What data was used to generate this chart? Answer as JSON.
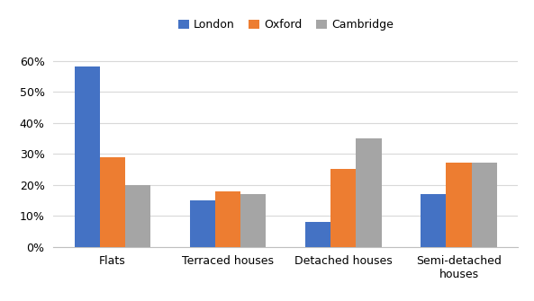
{
  "categories": [
    "Flats",
    "Terraced houses",
    "Detached houses",
    "Semi-detached\nhouses"
  ],
  "series": {
    "London": [
      0.58,
      0.15,
      0.08,
      0.17
    ],
    "Oxford": [
      0.29,
      0.18,
      0.25,
      0.27
    ],
    "Cambridge": [
      0.2,
      0.17,
      0.35,
      0.27
    ]
  },
  "colors": {
    "London": "#4472C4",
    "Oxford": "#ED7D31",
    "Cambridge": "#A5A5A5"
  },
  "ylim": [
    0,
    0.65
  ],
  "yticks": [
    0.0,
    0.1,
    0.2,
    0.3,
    0.4,
    0.5,
    0.6
  ],
  "legend_labels": [
    "London",
    "Oxford",
    "Cambridge"
  ],
  "bar_width": 0.22,
  "background_color": "#FFFFFF",
  "grid_color": "#D9D9D9"
}
